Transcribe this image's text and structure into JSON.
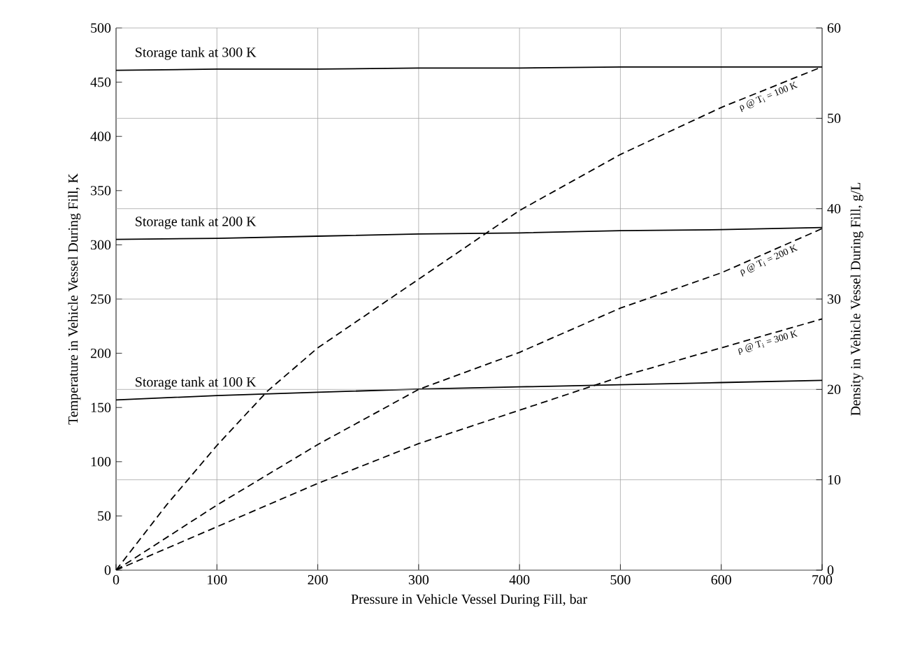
{
  "chart_data": {
    "type": "line",
    "xlabel": "Pressure in Vehicle Vessel During Fill, bar",
    "ylabel": "Temperature in Vehicle Vessel During Fill, K",
    "y2label": "Density in Vehicle Vessel During Fill, g/L",
    "xlim": [
      0,
      700
    ],
    "ylim": [
      0,
      500
    ],
    "y2lim": [
      0,
      60
    ],
    "xticks": [
      0,
      100,
      200,
      300,
      400,
      500,
      600,
      700
    ],
    "yticks": [
      0,
      50,
      100,
      150,
      200,
      250,
      300,
      350,
      400,
      450,
      500
    ],
    "y2ticks": [
      0,
      10,
      20,
      30,
      40,
      50,
      60
    ],
    "grid": true,
    "marker": "none",
    "x": [
      0,
      100,
      200,
      300,
      400,
      500,
      600,
      700
    ],
    "series": [
      {
        "name": "Storage tank at 300 K",
        "color": "#000000",
        "line_style": "solid",
        "values": [
          461,
          462,
          462,
          463,
          463,
          464,
          464,
          464
        ]
      },
      {
        "name": "Storage tank at 200 K",
        "color": "#000000",
        "line_style": "solid",
        "values": [
          305,
          306,
          308,
          310,
          311,
          313,
          314,
          316
        ]
      },
      {
        "name": "Storage tank at 100 K",
        "color": "#000000",
        "line_style": "solid",
        "values": [
          157,
          161,
          164,
          167,
          169,
          171,
          173,
          175
        ]
      },
      {
        "name": "ρ @ T$_{i}$ = 100 K",
        "color": "#000000",
        "line_style": "dashed",
        "axis": "y2",
        "x": [
          0,
          50,
          100,
          150,
          200,
          300,
          400,
          500,
          600,
          700
        ],
        "values": [
          0,
          7.2,
          13.8,
          19.8,
          24.6,
          32.2,
          39.8,
          46,
          51.2,
          55.7
        ]
      },
      {
        "name": "ρ @ T$_{i}$ = 200 K",
        "color": "#000000",
        "line_style": "dashed",
        "axis": "y2",
        "values": [
          0,
          7.2,
          13.9,
          20,
          24.1,
          29,
          32.9,
          37.8
        ]
      },
      {
        "name": "ρ @ T$_{i}$ = 300 K",
        "color": "#000000",
        "line_style": "dashed",
        "axis": "y2",
        "values": [
          0,
          4.8,
          9.6,
          14,
          17.7,
          21.4,
          24.6,
          27.8
        ]
      }
    ]
  }
}
